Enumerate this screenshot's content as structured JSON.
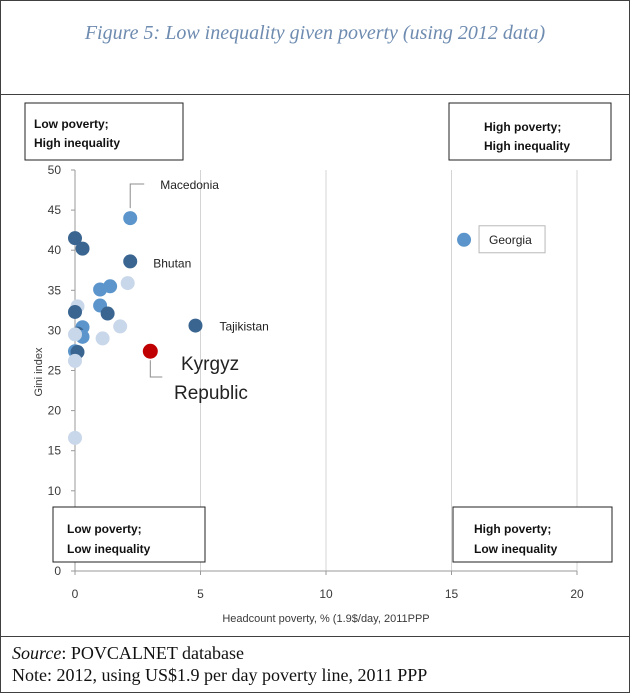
{
  "figure": {
    "caption": "Figure 5: Low inequality given poverty  (using 2012 data)",
    "source_label": "Source",
    "source_text": ": POVCALNET database",
    "note": "Note: 2012, using US$1.9 per day poverty line, 2011 PPP"
  },
  "chart_data": {
    "type": "scatter",
    "xlabel": "Headcount poverty, % (1.9$/day, 2011PPP",
    "ylabel": "Gini index",
    "xlim": [
      0,
      20
    ],
    "ylim": [
      0,
      50
    ],
    "x_ticks": [
      0,
      5,
      10,
      15,
      20
    ],
    "y_ticks": [
      0,
      10,
      15,
      20,
      25,
      30,
      35,
      40,
      45,
      50
    ],
    "grid": "vertical gridlines",
    "quadrant_labels": {
      "top_left": [
        "Low poverty;",
        "High inequality"
      ],
      "top_right": [
        "High poverty;",
        "High inequality"
      ],
      "bottom_left": [
        "Low poverty;",
        "Low inequality"
      ],
      "bottom_right": [
        "High poverty;",
        "Low inequality"
      ]
    },
    "colors": {
      "dark": "#3a6590",
      "mid": "#5b95cb",
      "light": "#c9d7ea",
      "highlight": "#c00000"
    },
    "points": [
      {
        "x": 0.0,
        "y": 41.5,
        "shade": "dark"
      },
      {
        "x": 0.3,
        "y": 40.2,
        "shade": "dark"
      },
      {
        "x": 2.2,
        "y": 44.0,
        "shade": "mid",
        "label": "Macedonia"
      },
      {
        "x": 2.2,
        "y": 38.6,
        "shade": "dark",
        "label": "Bhutan"
      },
      {
        "x": 15.5,
        "y": 41.3,
        "shade": "mid",
        "label": "Georgia"
      },
      {
        "x": 2.1,
        "y": 35.9,
        "shade": "light"
      },
      {
        "x": 1.4,
        "y": 35.5,
        "shade": "mid"
      },
      {
        "x": 1.0,
        "y": 35.1,
        "shade": "mid"
      },
      {
        "x": 0.1,
        "y": 33.0,
        "shade": "light"
      },
      {
        "x": 1.0,
        "y": 33.1,
        "shade": "mid"
      },
      {
        "x": 0.0,
        "y": 32.3,
        "shade": "dark"
      },
      {
        "x": 1.3,
        "y": 32.1,
        "shade": "dark"
      },
      {
        "x": 4.8,
        "y": 30.6,
        "shade": "dark",
        "label": "Tajikistan"
      },
      {
        "x": 0.3,
        "y": 30.4,
        "shade": "mid"
      },
      {
        "x": 1.8,
        "y": 30.5,
        "shade": "light"
      },
      {
        "x": 0.1,
        "y": 29.6,
        "shade": "dark"
      },
      {
        "x": 0.3,
        "y": 29.2,
        "shade": "mid"
      },
      {
        "x": 1.1,
        "y": 29.0,
        "shade": "light"
      },
      {
        "x": 0.0,
        "y": 29.5,
        "shade": "light"
      },
      {
        "x": 3.0,
        "y": 27.4,
        "shade": "highlight",
        "label": "Kyrgyz Republic"
      },
      {
        "x": 0.0,
        "y": 27.4,
        "shade": "mid"
      },
      {
        "x": 0.1,
        "y": 27.3,
        "shade": "dark"
      },
      {
        "x": 0.0,
        "y": 26.2,
        "shade": "light"
      },
      {
        "x": 0.0,
        "y": 16.6,
        "shade": "light"
      }
    ]
  }
}
